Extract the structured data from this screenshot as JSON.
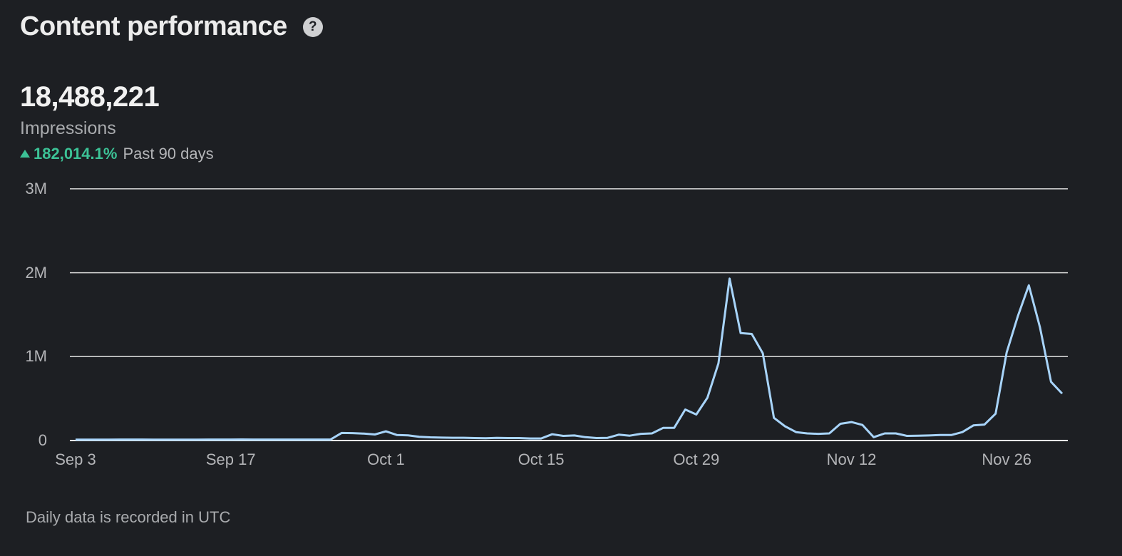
{
  "header": {
    "title": "Content performance",
    "help_icon": "question-circle-icon"
  },
  "metric": {
    "value": "18,488,221",
    "label": "Impressions",
    "change_direction": "up",
    "change_pct": "182,014.1%",
    "period": "Past 90 days"
  },
  "colors": {
    "background": "#1d1f23",
    "line": "#a8d4fa",
    "positive": "#3cc296",
    "grid": "#d9d9d9"
  },
  "footnote": "Daily data is recorded in UTC",
  "chart_data": {
    "type": "line",
    "title": "Content performance",
    "xlabel": "",
    "ylabel": "Impressions",
    "ylim": [
      0,
      3000000
    ],
    "y_ticks": [
      "0",
      "1M",
      "2M",
      "3M"
    ],
    "x_ticks": [
      "Sep 3",
      "Sep 17",
      "Oct 1",
      "Oct 15",
      "Oct 29",
      "Nov 12",
      "Nov 26"
    ],
    "grid": true,
    "legend": "none",
    "start_date": "Sep 3",
    "end_date": "Dec 1",
    "series": [
      {
        "name": "Impressions",
        "values": [
          10000,
          10000,
          10000,
          10000,
          12000,
          12000,
          12000,
          11000,
          10000,
          10000,
          10000,
          11000,
          12000,
          12000,
          12000,
          13000,
          12000,
          12000,
          12000,
          12000,
          12000,
          12000,
          12000,
          12000,
          90000,
          88000,
          82000,
          72000,
          110000,
          65000,
          62000,
          45000,
          38000,
          35000,
          33000,
          33000,
          30000,
          28000,
          32000,
          30000,
          30000,
          25000,
          25000,
          75000,
          55000,
          60000,
          40000,
          30000,
          32000,
          70000,
          58000,
          80000,
          85000,
          150000,
          150000,
          370000,
          310000,
          510000,
          920000,
          1930000,
          1280000,
          1270000,
          1040000,
          270000,
          170000,
          100000,
          85000,
          80000,
          85000,
          200000,
          220000,
          185000,
          40000,
          85000,
          85000,
          55000,
          58000,
          60000,
          65000,
          65000,
          100000,
          180000,
          190000,
          320000,
          1050000,
          1480000,
          1850000,
          1350000,
          700000,
          560000
        ]
      }
    ]
  }
}
